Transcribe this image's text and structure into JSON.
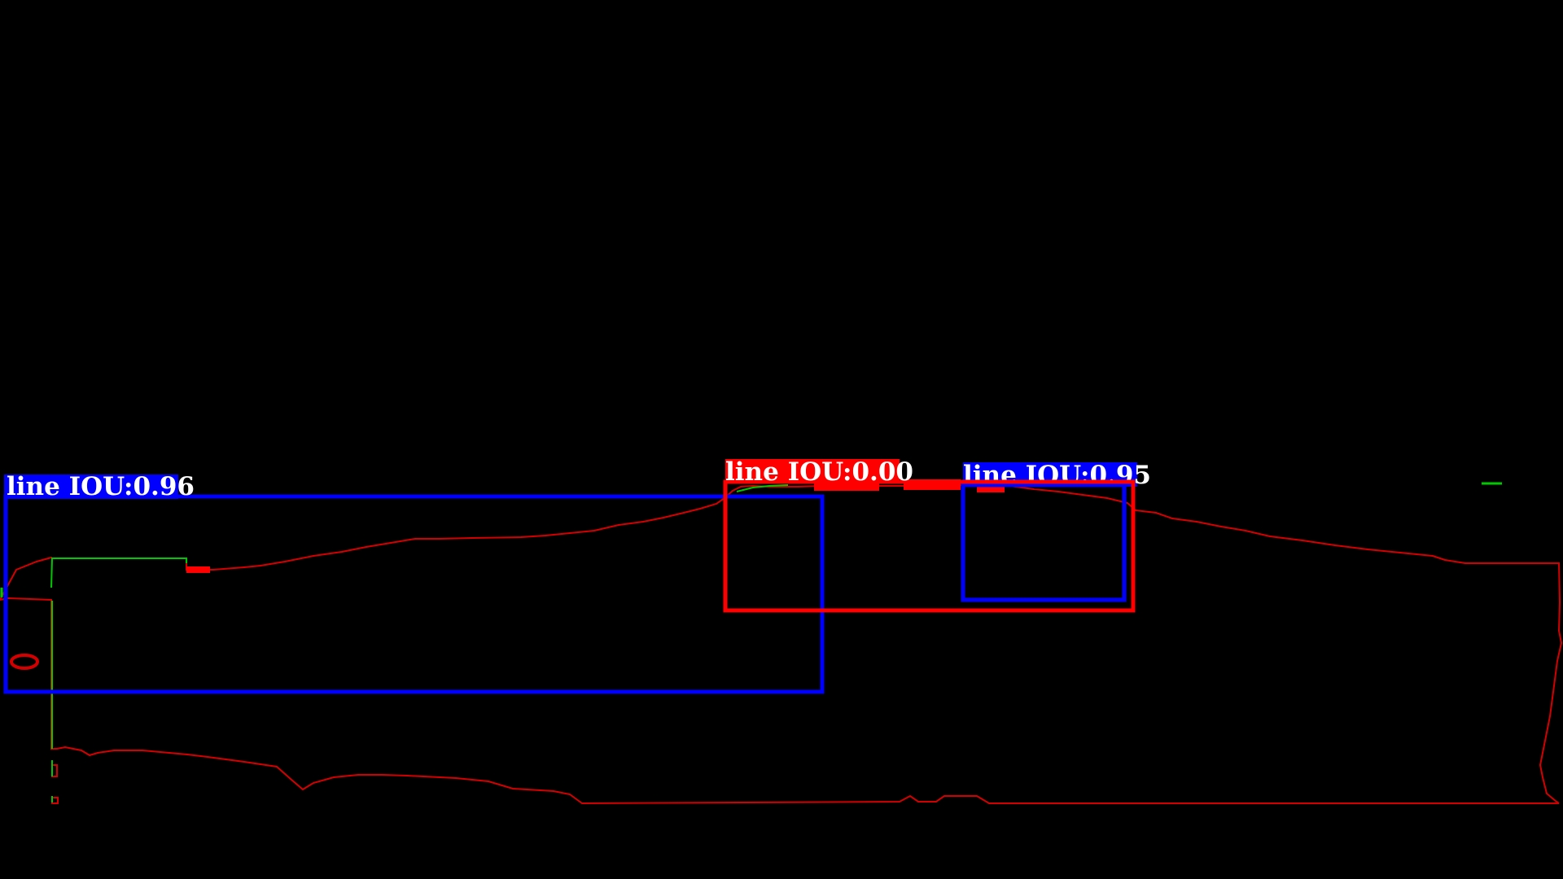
{
  "colors": {
    "background": "#000000",
    "contour": "#d40000",
    "ground_truth": "#00c800",
    "fill_red": "#ff0000",
    "detection_box_blue": "#0000ff",
    "detection_box_red": "#ff0000",
    "label_text": "#ffffff"
  },
  "detections": [
    {
      "id": "det-1",
      "label": "line IOU:0.96",
      "class": "line",
      "iou": 0.96,
      "color": "#0000ff"
    },
    {
      "id": "det-2",
      "label": "line IOU:0.00",
      "class": "line",
      "iou": 0.0,
      "color": "#ff0000"
    },
    {
      "id": "det-3",
      "label": "line IOU:0.95",
      "class": "line",
      "iou": 0.95,
      "color": "#0000ff"
    }
  ]
}
